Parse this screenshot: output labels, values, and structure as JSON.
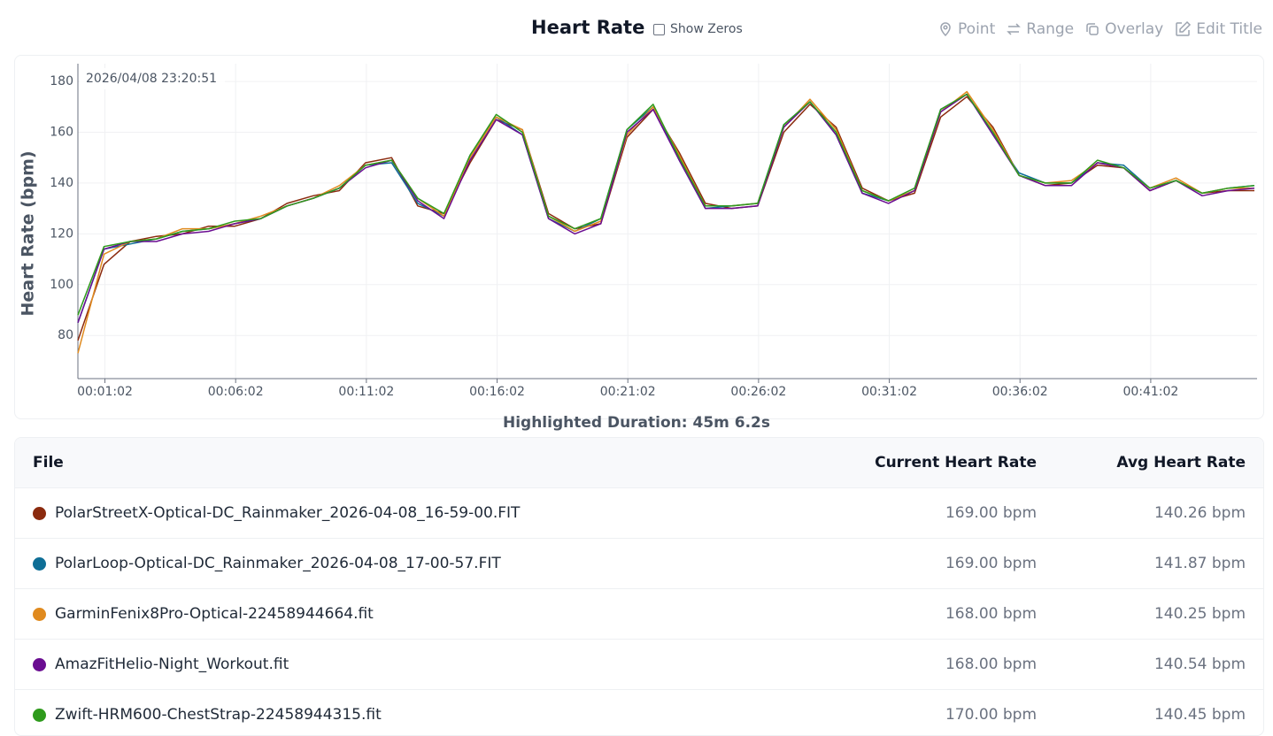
{
  "header": {
    "title": "Heart Rate",
    "checkbox": "Show Zeros",
    "tools": [
      "Point",
      "Range",
      "Overlay",
      "Edit Title"
    ]
  },
  "chart_data": {
    "type": "line",
    "ylabel": "Heart Rate (bpm)",
    "annotation": "2026/04/08 23:20:51",
    "grid": true,
    "xlim": [
      0,
      2706
    ],
    "ylim": [
      63,
      187
    ],
    "xticks": [
      {
        "value": 62,
        "label": "00:01:02"
      },
      {
        "value": 362,
        "label": "00:06:02"
      },
      {
        "value": 662,
        "label": "00:11:02"
      },
      {
        "value": 962,
        "label": "00:16:02"
      },
      {
        "value": 1262,
        "label": "00:21:02"
      },
      {
        "value": 1562,
        "label": "00:26:02"
      },
      {
        "value": 1862,
        "label": "00:31:02"
      },
      {
        "value": 2162,
        "label": "00:36:02"
      },
      {
        "value": 2462,
        "label": "00:41:02"
      }
    ],
    "yticks": [
      80,
      100,
      120,
      140,
      160,
      180
    ],
    "x": [
      0,
      60,
      120,
      180,
      240,
      300,
      360,
      420,
      480,
      540,
      600,
      660,
      720,
      780,
      840,
      900,
      960,
      1020,
      1080,
      1140,
      1200,
      1260,
      1320,
      1380,
      1440,
      1500,
      1560,
      1620,
      1680,
      1740,
      1800,
      1860,
      1920,
      1980,
      2040,
      2100,
      2160,
      2220,
      2280,
      2340,
      2400,
      2460,
      2520,
      2580,
      2640,
      2700
    ],
    "series": [
      {
        "name": "PolarStreetX-Optical-DC_Rainmaker_2026-04-08_16-59-00.FIT",
        "color": "#8b2a0e",
        "values": [
          78,
          108,
          117,
          119,
          120,
          123,
          123,
          126,
          132,
          135,
          137,
          148,
          150,
          131,
          128,
          148,
          165,
          161,
          128,
          122,
          124,
          158,
          169,
          152,
          132,
          130,
          131,
          160,
          171,
          162,
          138,
          133,
          136,
          166,
          174,
          162,
          143,
          139,
          140,
          147,
          146,
          137,
          141,
          136,
          137,
          137
        ]
      },
      {
        "name": "PolarLoop-Optical-DC_Rainmaker_2026-04-08_17-00-57.FIT",
        "color": "#0e6e96",
        "values": [
          85,
          114,
          116,
          118,
          121,
          122,
          124,
          126,
          131,
          134,
          138,
          147,
          148,
          132,
          127,
          151,
          166,
          159,
          126,
          121,
          126,
          161,
          170,
          149,
          130,
          131,
          132,
          163,
          172,
          159,
          136,
          133,
          137,
          169,
          175,
          159,
          144,
          140,
          140,
          148,
          147,
          138,
          141,
          136,
          138,
          139
        ]
      },
      {
        "name": "GarminFenix8Pro-Optical-22458944664.fit",
        "color": "#e08a1e",
        "values": [
          73,
          112,
          117,
          118,
          122,
          122,
          124,
          127,
          131,
          134,
          139,
          147,
          149,
          134,
          127,
          150,
          166,
          161,
          127,
          121,
          125,
          159,
          170,
          151,
          131,
          131,
          132,
          162,
          173,
          161,
          137,
          133,
          137,
          168,
          176,
          161,
          143,
          140,
          141,
          148,
          146,
          138,
          142,
          136,
          138,
          138
        ]
      },
      {
        "name": "AmazFitHelio-Night_Workout.fit",
        "color": "#6a0d91",
        "values": [
          85,
          114,
          117,
          117,
          120,
          121,
          124,
          126,
          131,
          134,
          138,
          146,
          149,
          133,
          126,
          149,
          165,
          159,
          126,
          120,
          124,
          160,
          169,
          149,
          130,
          130,
          131,
          162,
          172,
          159,
          136,
          132,
          137,
          168,
          175,
          159,
          143,
          139,
          139,
          148,
          146,
          137,
          141,
          135,
          137,
          138
        ]
      },
      {
        "name": "Zwift-HRM600-ChestStrap-22458944315.fit",
        "color": "#2e9a1c",
        "values": [
          88,
          115,
          117,
          118,
          121,
          122,
          125,
          126,
          131,
          134,
          138,
          147,
          149,
          134,
          128,
          151,
          167,
          160,
          127,
          122,
          126,
          161,
          171,
          150,
          131,
          131,
          132,
          163,
          172,
          160,
          137,
          133,
          138,
          169,
          175,
          160,
          143,
          140,
          140,
          149,
          146,
          138,
          141,
          136,
          138,
          139
        ]
      }
    ]
  },
  "duration": "Highlighted Duration: 45m 6.2s",
  "table": {
    "columns": [
      "File",
      "Current Heart Rate",
      "Avg Heart Rate"
    ],
    "rows": [
      [
        "169.00 bpm",
        "140.26 bpm"
      ],
      [
        "169.00 bpm",
        "141.87 bpm"
      ],
      [
        "168.00 bpm",
        "140.25 bpm"
      ],
      [
        "168.00 bpm",
        "140.54 bpm"
      ],
      [
        "170.00 bpm",
        "140.45 bpm"
      ]
    ]
  }
}
